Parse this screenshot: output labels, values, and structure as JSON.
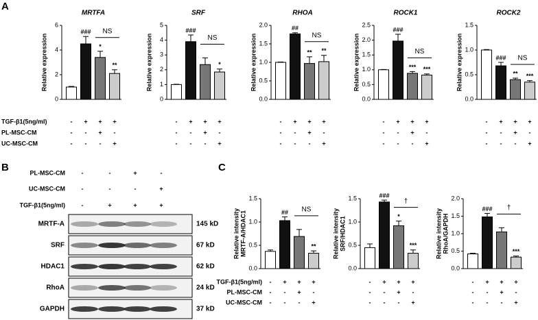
{
  "panel_labels": [
    "A",
    "B",
    "C"
  ],
  "treatments": [
    {
      "name": "TGF-β1(5ng/ml)",
      "signs": [
        "-",
        "+",
        "+",
        "+"
      ]
    },
    {
      "name": "PL-MSC-CM",
      "signs": [
        "-",
        "-",
        "+",
        "-"
      ]
    },
    {
      "name": "UC-MSC-CM",
      "signs": [
        "-",
        "-",
        "-",
        "+"
      ]
    }
  ],
  "blot": {
    "treatments": [
      {
        "name": "PL-MSC-CM",
        "signs": [
          "-",
          "-",
          "+",
          "-"
        ]
      },
      {
        "name": "UC-MSC-CM",
        "signs": [
          "-",
          "-",
          "-",
          "+"
        ]
      },
      {
        "name": "TGF-β1(5ng/ml)",
        "signs": [
          "-",
          "+",
          "+",
          "+"
        ]
      }
    ],
    "bands": [
      {
        "name": "MRTF-A",
        "size": "145 kD"
      },
      {
        "name": "SRF",
        "size": "67 kD"
      },
      {
        "name": "HDAC1",
        "size": "62 kD"
      },
      {
        "name": "RhoA",
        "size": "24 kD"
      },
      {
        "name": "GAPDH",
        "size": "37 kD"
      }
    ]
  },
  "chart_data": [
    {
      "type": "bar",
      "title": "MRTFA",
      "ylabel": [
        "Relative expression"
      ],
      "values": [
        1,
        4.5,
        3.4,
        2.1
      ],
      "errors": [
        0.05,
        0.6,
        0.5,
        0.3
      ],
      "colors": [
        "#ffffff",
        "#111111",
        "#777777",
        "#cccccc"
      ],
      "ylim": [
        0,
        6
      ],
      "yticks": [
        0,
        2,
        4,
        6
      ],
      "annotations": [
        null,
        "###",
        "*",
        "**"
      ],
      "bracket": "NS"
    },
    {
      "type": "bar",
      "title": "SRF",
      "ylabel": [
        "Relative expression"
      ],
      "values": [
        1,
        3.9,
        2.35,
        1.85
      ],
      "errors": [
        0.02,
        0.45,
        0.45,
        0.2
      ],
      "colors": [
        "#ffffff",
        "#111111",
        "#777777",
        "#cccccc"
      ],
      "ylim": [
        0,
        5
      ],
      "yticks": [
        0,
        1,
        2,
        3,
        4,
        5
      ],
      "annotations": [
        null,
        "###",
        null,
        "*"
      ],
      "bracket": "NS"
    },
    {
      "type": "bar",
      "title": "RHOA",
      "ylabel": [
        "Relative expression"
      ],
      "values": [
        1.0,
        1.77,
        0.97,
        1.02
      ],
      "errors": [
        0.01,
        0.03,
        0.18,
        0.17
      ],
      "colors": [
        "#ffffff",
        "#111111",
        "#777777",
        "#cccccc"
      ],
      "ylim": [
        0,
        2
      ],
      "yticks": [
        {
          "value": 0,
          "label": "0.0"
        },
        0.5,
        {
          "value": 1,
          "label": "1.0"
        },
        1.5,
        {
          "value": 2,
          "label": "2.0"
        }
      ],
      "annotations": [
        null,
        "##",
        "**",
        "**"
      ],
      "bracket": "NS"
    },
    {
      "type": "bar",
      "title": "ROCK1",
      "ylabel": [
        "Relative expression"
      ],
      "values": [
        1.0,
        1.97,
        0.88,
        0.82
      ],
      "errors": [
        0.01,
        0.23,
        0.06,
        0.04
      ],
      "colors": [
        "#ffffff",
        "#111111",
        "#777777",
        "#cccccc"
      ],
      "ylim": [
        0,
        2.5
      ],
      "yticks": [
        {
          "value": 0,
          "label": "0.0"
        },
        0.5,
        {
          "value": 1,
          "label": "1.0"
        },
        1.5,
        {
          "value": 2,
          "label": "2.0"
        },
        2.5
      ],
      "annotations": [
        null,
        "###",
        "***",
        "***"
      ],
      "bracket": "NS"
    },
    {
      "type": "bar",
      "title": "ROCK2",
      "ylabel": [
        "Relative expression"
      ],
      "values": [
        1.0,
        0.68,
        0.4,
        0.35
      ],
      "errors": [
        0.01,
        0.07,
        0.03,
        0.03
      ],
      "colors": [
        "#ffffff",
        "#111111",
        "#777777",
        "#cccccc"
      ],
      "ylim": [
        0,
        1.5
      ],
      "yticks": [
        {
          "value": 0,
          "label": "0.0"
        },
        0.5,
        {
          "value": 1,
          "label": "1.0"
        },
        1.5
      ],
      "annotations": [
        null,
        "###",
        "**",
        "***"
      ],
      "bracket": "NS"
    },
    {
      "type": "bar",
      "ylabel": [
        "Relative intensity",
        "MRTF-A/HDAC1"
      ],
      "values": [
        0.37,
        1.03,
        0.69,
        0.33
      ],
      "errors": [
        0.03,
        0.08,
        0.15,
        0.05
      ],
      "colors": [
        "#ffffff",
        "#111111",
        "#777777",
        "#cccccc"
      ],
      "ylim": [
        0,
        1.5
      ],
      "yticks": [
        {
          "value": 0,
          "label": "0.0"
        },
        0.5,
        {
          "value": 1,
          "label": "1.0"
        },
        1.5
      ],
      "annotations": [
        null,
        "##",
        null,
        "**"
      ],
      "bracket": "NS"
    },
    {
      "type": "bar",
      "ylabel": [
        "Relative intensity",
        "SRF/HDAC1"
      ],
      "values": [
        0.45,
        1.43,
        0.92,
        0.33
      ],
      "errors": [
        0.08,
        0.04,
        0.1,
        0.07
      ],
      "colors": [
        "#ffffff",
        "#111111",
        "#777777",
        "#cccccc"
      ],
      "ylim": [
        0,
        1.5
      ],
      "yticks": [
        {
          "value": 0,
          "label": "0.0"
        },
        0.5,
        {
          "value": 1,
          "label": "1.0"
        },
        1.5
      ],
      "annotations": [
        null,
        "###",
        "*",
        "***"
      ],
      "bracket": "†"
    },
    {
      "type": "bar",
      "ylabel": [
        "Relative intensity",
        "RhoA/GAPDH"
      ],
      "values": [
        0.42,
        1.48,
        1.05,
        0.33
      ],
      "errors": [
        0.02,
        0.1,
        0.12,
        0.03
      ],
      "colors": [
        "#ffffff",
        "#111111",
        "#777777",
        "#cccccc"
      ],
      "ylim": [
        0,
        2
      ],
      "yticks": [
        {
          "value": 0,
          "label": "0.0"
        },
        0.5,
        {
          "value": 1,
          "label": "1.0"
        },
        1.5,
        {
          "value": 2,
          "label": "2.0"
        }
      ],
      "annotations": [
        null,
        "###",
        null,
        "***"
      ],
      "bracket": "†"
    }
  ]
}
